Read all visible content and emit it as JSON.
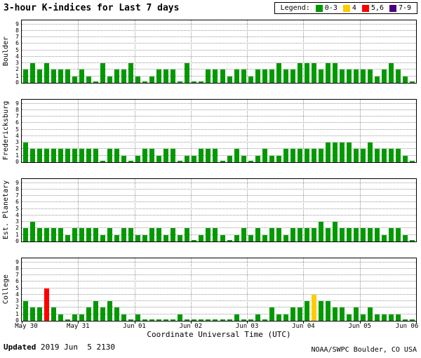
{
  "title": "3-hour K-indices for Last 7 days",
  "legend": {
    "label": "Legend:",
    "items": [
      {
        "label": "0-3",
        "color": "#009900"
      },
      {
        "label": "4",
        "color": "#ffcc00"
      },
      {
        "label": "5,6",
        "color": "#ff0000"
      },
      {
        "label": "7-9",
        "color": "#4b0082"
      }
    ]
  },
  "footer": {
    "updated_label": "Updated",
    "updated_value": " 2019 Jun  5 2130",
    "credit": "NOAA/SWPC Boulder, CO USA"
  },
  "chart_data": {
    "type": "bar",
    "title": "3-hour K-indices for Last 7 days",
    "x_axis": {
      "label": "Coordinate Universal Time (UTC)",
      "tick_labels": [
        "May 30",
        "May 31",
        "Jun 01",
        "Jun 02",
        "Jun 03",
        "Jun 04",
        "Jun 05",
        "Jun 06"
      ],
      "bars_per_day": 8,
      "days": 7
    },
    "y_axis": {
      "ticks": [
        0,
        1,
        2,
        3,
        4,
        5,
        6,
        7,
        8,
        9
      ],
      "range": [
        0,
        9.5
      ],
      "grid": true
    },
    "color_scale": {
      "0-3": "#009900",
      "4": "#ffcc00",
      "5-6": "#ff0000",
      "7-9": "#4b0082"
    },
    "series": [
      {
        "name": "Boulder",
        "values": [
          2,
          3,
          2,
          3,
          2,
          2,
          2,
          1,
          2,
          1,
          0,
          3,
          1,
          2,
          2,
          3,
          1,
          0,
          1,
          2,
          2,
          2,
          0,
          3,
          0,
          0,
          2,
          2,
          2,
          1,
          2,
          2,
          1,
          2,
          2,
          2,
          3,
          2,
          2,
          3,
          3,
          3,
          2,
          3,
          3,
          2,
          2,
          2,
          2,
          2,
          1,
          2,
          3,
          2,
          1,
          0
        ]
      },
      {
        "name": "Fredericksburg",
        "values": [
          3,
          2,
          2,
          2,
          2,
          2,
          2,
          2,
          2,
          2,
          2,
          0,
          2,
          2,
          1,
          0,
          1,
          2,
          2,
          1,
          2,
          2,
          0,
          1,
          1,
          2,
          2,
          2,
          0,
          1,
          2,
          1,
          0,
          1,
          2,
          1,
          1,
          2,
          2,
          2,
          2,
          2,
          2,
          3,
          3,
          3,
          3,
          2,
          2,
          3,
          2,
          2,
          2,
          2,
          1,
          0
        ]
      },
      {
        "name": "Est. Planetary",
        "values": [
          2,
          3,
          2,
          2,
          2,
          2,
          1,
          2,
          2,
          2,
          2,
          1,
          2,
          1,
          2,
          2,
          1,
          1,
          2,
          2,
          1,
          2,
          1,
          2,
          0,
          1,
          2,
          2,
          1,
          0,
          1,
          2,
          1,
          2,
          1,
          2,
          2,
          1,
          2,
          2,
          2,
          2,
          3,
          2,
          3,
          2,
          2,
          2,
          2,
          2,
          2,
          1,
          2,
          2,
          1,
          0
        ]
      },
      {
        "name": "College",
        "values": [
          3,
          2,
          2,
          5,
          2,
          1,
          0,
          1,
          1,
          2,
          3,
          2,
          3,
          2,
          1,
          0,
          1,
          0,
          0,
          0,
          0,
          0,
          1,
          0,
          0,
          0,
          0,
          0,
          0,
          0,
          1,
          0,
          0,
          1,
          0,
          2,
          1,
          1,
          2,
          2,
          3,
          4,
          3,
          3,
          2,
          2,
          1,
          2,
          1,
          2,
          1,
          1,
          1,
          1,
          0,
          0
        ]
      }
    ]
  }
}
